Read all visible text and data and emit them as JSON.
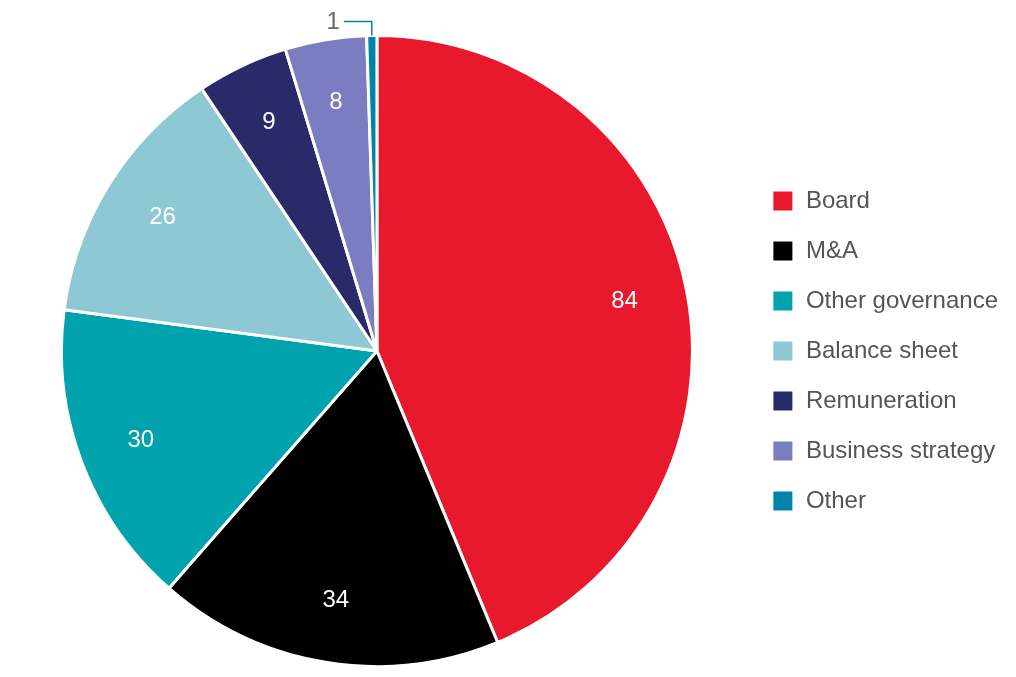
{
  "chart_data": {
    "type": "pie",
    "categories": [
      "Board",
      "M&A",
      "Other governance",
      "Balance sheet",
      "Remuneration",
      "Business strategy",
      "Other"
    ],
    "values": [
      84,
      34,
      30,
      26,
      9,
      8,
      1
    ],
    "colors": [
      "#e8192c",
      "#000000",
      "#00a3ad",
      "#8dc8d4",
      "#2a2a6a",
      "#7a7dbf",
      "#0083a9"
    ],
    "data_labels": true,
    "legend": "right"
  }
}
